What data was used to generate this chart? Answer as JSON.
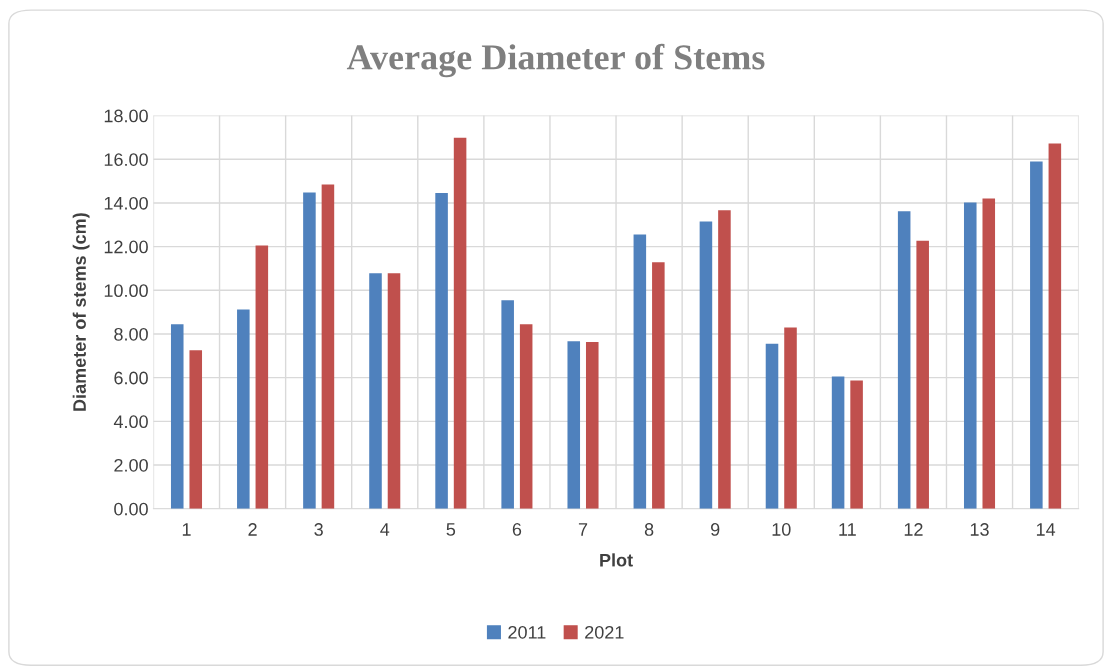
{
  "chart_data": {
    "type": "bar",
    "title": "Average Diameter of Stems",
    "xlabel": "Plot",
    "ylabel": "Diameter of stems (cm)",
    "categories": [
      "1",
      "2",
      "3",
      "4",
      "5",
      "6",
      "7",
      "8",
      "9",
      "10",
      "11",
      "12",
      "13",
      "14"
    ],
    "series": [
      {
        "name": "2011",
        "color": "#4f81bd",
        "values": [
          8.45,
          9.12,
          14.48,
          10.78,
          14.45,
          9.55,
          7.67,
          12.56,
          13.15,
          7.55,
          6.05,
          13.62,
          14.02,
          15.9
        ]
      },
      {
        "name": "2021",
        "color": "#c0504d",
        "values": [
          7.25,
          12.05,
          14.85,
          10.78,
          16.98,
          8.45,
          7.63,
          11.28,
          13.67,
          8.3,
          5.87,
          12.27,
          14.2,
          16.72
        ]
      }
    ],
    "ylim": [
      0,
      18
    ],
    "yticks": [
      {
        "value": 0,
        "label": "0.00"
      },
      {
        "value": 2,
        "label": "2.00"
      },
      {
        "value": 4,
        "label": "4.00"
      },
      {
        "value": 6,
        "label": "6.00"
      },
      {
        "value": 8,
        "label": "8.00"
      },
      {
        "value": 10,
        "label": "10.00"
      },
      {
        "value": 12,
        "label": "12.00"
      },
      {
        "value": 14,
        "label": "14.00"
      },
      {
        "value": 16,
        "label": "16.00"
      },
      {
        "value": 18,
        "label": "18.00"
      }
    ],
    "grid": true,
    "legend": "bottom"
  }
}
